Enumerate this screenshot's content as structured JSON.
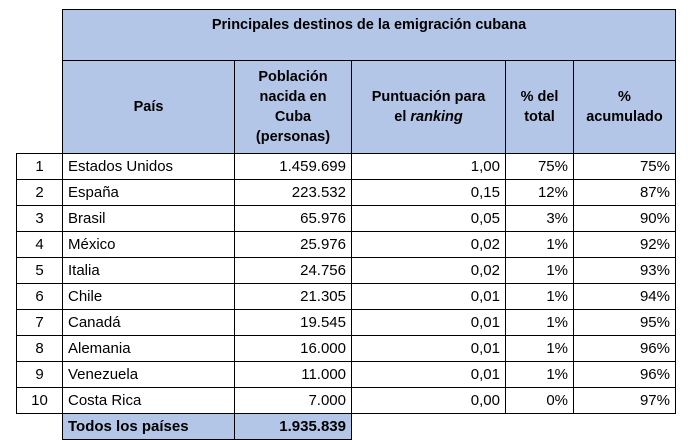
{
  "table": {
    "title": "Principales destinos de la emigración cubana",
    "headers": {
      "country": "País",
      "population_lines": [
        "Población",
        "nacida en",
        "Cuba",
        "(personas)"
      ],
      "score_line1": "Puntuación para",
      "score_line2_prefix": "el ",
      "score_line2_italic": "ranking",
      "pct_total_lines": [
        "% del",
        "total"
      ],
      "pct_cum_lines": [
        "%",
        "acumulado"
      ]
    },
    "rows": [
      {
        "rank": "1",
        "country": "Estados Unidos",
        "population": "1.459.699",
        "score": "1,00",
        "pct_total": "75%",
        "pct_cum": "75%"
      },
      {
        "rank": "2",
        "country": "España",
        "population": "223.532",
        "score": "0,15",
        "pct_total": "12%",
        "pct_cum": "87%"
      },
      {
        "rank": "3",
        "country": "Brasil",
        "population": "65.976",
        "score": "0,05",
        "pct_total": "3%",
        "pct_cum": "90%"
      },
      {
        "rank": "4",
        "country": "México",
        "population": "25.976",
        "score": "0,02",
        "pct_total": "1%",
        "pct_cum": "92%"
      },
      {
        "rank": "5",
        "country": "Italia",
        "population": "24.756",
        "score": "0,02",
        "pct_total": "1%",
        "pct_cum": "93%"
      },
      {
        "rank": "6",
        "country": "Chile",
        "population": "21.305",
        "score": "0,01",
        "pct_total": "1%",
        "pct_cum": "94%"
      },
      {
        "rank": "7",
        "country": "Canadá",
        "population": "19.545",
        "score": "0,01",
        "pct_total": "1%",
        "pct_cum": "95%"
      },
      {
        "rank": "8",
        "country": "Alemania",
        "population": "16.000",
        "score": "0,01",
        "pct_total": "1%",
        "pct_cum": "96%"
      },
      {
        "rank": "9",
        "country": "Venezuela",
        "population": "11.000",
        "score": "0,01",
        "pct_total": "1%",
        "pct_cum": "96%"
      },
      {
        "rank": "10",
        "country": "Costa Rica",
        "population": "7.000",
        "score": "0,00",
        "pct_total": "0%",
        "pct_cum": "97%"
      }
    ],
    "total": {
      "label": "Todos los países",
      "population": "1.935.839"
    },
    "colors": {
      "header_fill": "#b4c6e7",
      "border": "#000000"
    }
  }
}
